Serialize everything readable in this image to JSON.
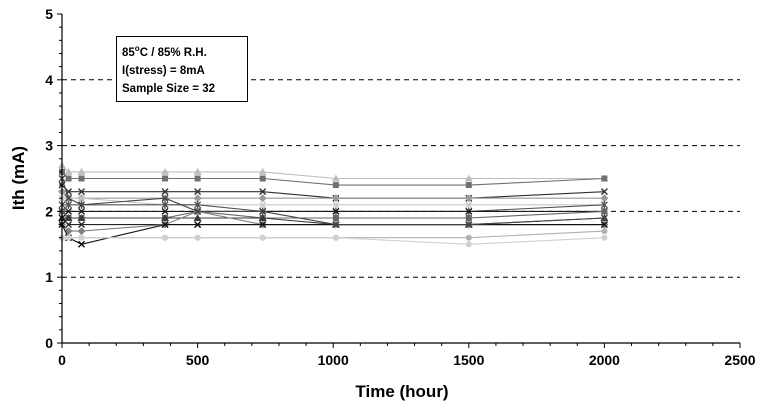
{
  "chart_data": {
    "type": "line",
    "title": "",
    "xlabel": "Time (hour)",
    "ylabel": "Ith (mA)",
    "xlim": [
      0,
      2500
    ],
    "ylim": [
      0,
      5
    ],
    "xticks": [
      "0",
      "500",
      "1000",
      "1500",
      "2000",
      "2500"
    ],
    "yticks": [
      "0",
      "1",
      "2",
      "3",
      "4",
      "5"
    ],
    "grid": "horizontal dashed at y = 1, 2, 3, 4",
    "annotation": {
      "line1_main": "85",
      "line1_sup": "o",
      "line1_rest": "C / 85% R.H.",
      "line2": "I(stress) = 8mA",
      "line3": "Sample Size = 32"
    },
    "x": [
      0,
      24,
      72,
      380,
      500,
      740,
      1010,
      1500,
      2000
    ],
    "series": [
      {
        "values": [
          2.7,
          2.6,
          2.6,
          2.6,
          2.6,
          2.6,
          2.5,
          2.5,
          2.5
        ],
        "color": "#bdbdbd",
        "marker": "triangle"
      },
      {
        "values": [
          2.6,
          2.5,
          2.5,
          2.5,
          2.5,
          2.5,
          2.4,
          2.4,
          2.5
        ],
        "color": "#707070",
        "marker": "square"
      },
      {
        "values": [
          2.4,
          2.3,
          2.3,
          2.3,
          2.3,
          2.3,
          2.2,
          2.2,
          2.3
        ],
        "color": "#303030",
        "marker": "x"
      },
      {
        "values": [
          2.3,
          2.2,
          2.2,
          2.2,
          2.2,
          2.2,
          2.2,
          2.2,
          2.2
        ],
        "color": "#9a9a9a",
        "marker": "diamond"
      },
      {
        "values": [
          2.2,
          2.2,
          2.2,
          2.1,
          2.1,
          2.1,
          2.1,
          2.1,
          2.1
        ],
        "color": "#c8c8c8",
        "marker": "x"
      },
      {
        "values": [
          2.1,
          2.1,
          2.1,
          2.1,
          2.1,
          2.0,
          2.0,
          2.0,
          2.1
        ],
        "color": "#505050",
        "marker": "star"
      },
      {
        "values": [
          2.0,
          2.0,
          2.0,
          2.0,
          2.0,
          2.0,
          2.0,
          2.0,
          2.0
        ],
        "color": "#1a1a1a",
        "marker": "x"
      },
      {
        "values": [
          2.0,
          1.9,
          1.9,
          1.9,
          2.0,
          1.9,
          1.9,
          1.9,
          2.0
        ],
        "color": "#666666",
        "marker": "square"
      },
      {
        "values": [
          1.9,
          1.9,
          1.9,
          1.9,
          1.9,
          1.9,
          1.8,
          1.8,
          1.9
        ],
        "color": "#3a3a3a",
        "marker": "triangle"
      },
      {
        "values": [
          1.9,
          1.8,
          1.8,
          1.8,
          1.8,
          1.8,
          1.8,
          1.8,
          1.8
        ],
        "color": "#222222",
        "marker": "x"
      },
      {
        "values": [
          1.8,
          1.7,
          1.7,
          1.8,
          2.0,
          1.8,
          1.8,
          1.8,
          1.8
        ],
        "color": "#808080",
        "marker": "diamond"
      },
      {
        "values": [
          1.8,
          1.6,
          1.5,
          1.8,
          1.8,
          1.8,
          1.8,
          1.8,
          1.8
        ],
        "color": "#111111",
        "marker": "x"
      },
      {
        "values": [
          1.6,
          1.6,
          1.6,
          1.6,
          1.6,
          1.6,
          1.6,
          1.6,
          1.7
        ],
        "color": "#b0b0b0",
        "marker": "circle"
      },
      {
        "values": [
          1.6,
          1.6,
          1.6,
          1.6,
          1.6,
          1.6,
          1.6,
          1.5,
          1.6
        ],
        "color": "#d0d0d0",
        "marker": "circle"
      },
      {
        "values": [
          2.5,
          2.2,
          2.1,
          2.2,
          2.0,
          2.0,
          1.8,
          1.8,
          1.9
        ],
        "color": "#444444",
        "marker": "x"
      }
    ]
  }
}
